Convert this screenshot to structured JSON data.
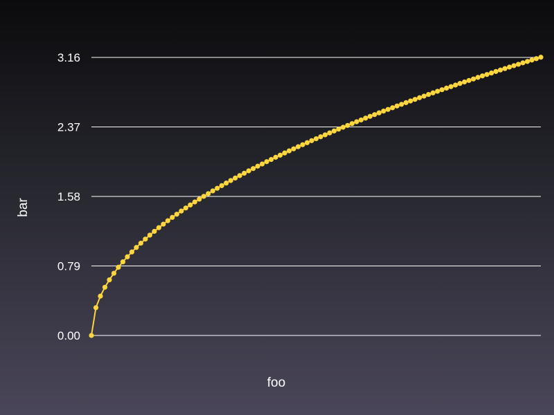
{
  "chart_data": {
    "type": "line",
    "title": "",
    "xlabel": "foo",
    "ylabel": "bar",
    "x_range": [
      0,
      100
    ],
    "ylim": [
      0,
      3.16
    ],
    "y_ticks": [
      0.0,
      0.79,
      1.58,
      2.37,
      3.16
    ],
    "y_tick_labels": [
      "0.00",
      "0.79",
      "1.58",
      "2.37",
      "3.16"
    ],
    "grid": true,
    "colors": {
      "series": "#fcd53f",
      "grid": "#ffffff",
      "text": "#ffffff"
    },
    "series": [
      {
        "x": [
          0,
          1,
          2,
          3,
          4,
          5,
          6,
          7,
          8,
          9,
          10,
          11,
          12,
          13,
          14,
          15,
          16,
          17,
          18,
          19,
          20,
          21,
          22,
          23,
          24,
          25,
          26,
          27,
          28,
          29,
          30,
          31,
          32,
          33,
          34,
          35,
          36,
          37,
          38,
          39,
          40,
          41,
          42,
          43,
          44,
          45,
          46,
          47,
          48,
          49,
          50,
          51,
          52,
          53,
          54,
          55,
          56,
          57,
          58,
          59,
          60,
          61,
          62,
          63,
          64,
          65,
          66,
          67,
          68,
          69,
          70,
          71,
          72,
          73,
          74,
          75,
          76,
          77,
          78,
          79,
          80,
          81,
          82,
          83,
          84,
          85,
          86,
          87,
          88,
          89,
          90,
          91,
          92,
          93,
          94,
          95,
          96,
          97,
          98,
          99,
          100
        ],
        "values": [
          0.0,
          0.316,
          0.447,
          0.548,
          0.632,
          0.707,
          0.775,
          0.837,
          0.894,
          0.949,
          1.0,
          1.049,
          1.095,
          1.14,
          1.183,
          1.225,
          1.265,
          1.304,
          1.342,
          1.378,
          1.414,
          1.449,
          1.483,
          1.517,
          1.549,
          1.581,
          1.612,
          1.643,
          1.673,
          1.703,
          1.732,
          1.761,
          1.789,
          1.817,
          1.844,
          1.871,
          1.897,
          1.924,
          1.949,
          1.975,
          2.0,
          2.025,
          2.049,
          2.074,
          2.098,
          2.121,
          2.145,
          2.168,
          2.191,
          2.214,
          2.236,
          2.258,
          2.28,
          2.302,
          2.324,
          2.345,
          2.366,
          2.387,
          2.408,
          2.429,
          2.449,
          2.47,
          2.49,
          2.51,
          2.53,
          2.55,
          2.569,
          2.588,
          2.608,
          2.627,
          2.646,
          2.665,
          2.683,
          2.702,
          2.72,
          2.739,
          2.757,
          2.775,
          2.793,
          2.811,
          2.828,
          2.846,
          2.864,
          2.881,
          2.898,
          2.915,
          2.933,
          2.95,
          2.966,
          2.983,
          3.0,
          3.017,
          3.033,
          3.05,
          3.066,
          3.082,
          3.098,
          3.114,
          3.13,
          3.146,
          3.162
        ]
      }
    ]
  }
}
